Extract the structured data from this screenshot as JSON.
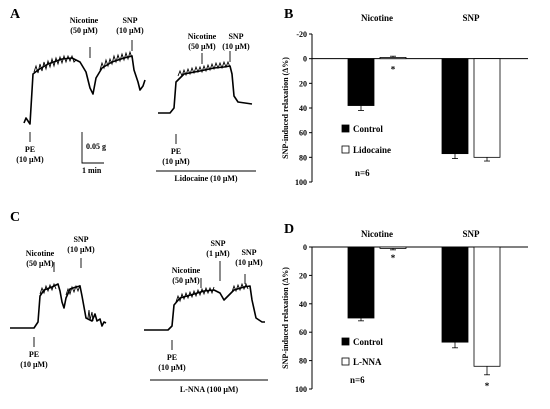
{
  "panel_labels": {
    "a": "A",
    "b": "B",
    "c": "C",
    "d": "D"
  },
  "traces": {
    "a": {
      "nicotine": [
        "Nicotine",
        "(50 μM)"
      ],
      "snp": [
        "SNP",
        "(10 μM)"
      ],
      "pe": [
        "PE",
        "(10 μM)"
      ],
      "nicotine2": [
        "Nicotine",
        "(50 μM)"
      ],
      "snp2": [
        "SNP",
        "(10 μM)"
      ],
      "pe2": [
        "PE",
        "(10 μM)"
      ],
      "scale_force": "0.05 g",
      "scale_time": "1 min",
      "treatment": "Lidocaine (10 μM)"
    },
    "c": {
      "nicotine": [
        "Nicotine",
        "(50 μM)"
      ],
      "snp": [
        "SNP",
        "(10 μM)"
      ],
      "pe": [
        "PE",
        "(10 μM)"
      ],
      "nicotine2": [
        "Nicotine",
        "(50 μM)"
      ],
      "snp_mid": [
        "SNP",
        "(1 μM)"
      ],
      "snp2": [
        "SNP",
        "(10 μM)"
      ],
      "pe2": [
        "PE",
        "(10 μM)"
      ],
      "treatment": "L-NNA (100 μM)"
    }
  },
  "chart_data": [
    {
      "panel": "B",
      "type": "bar",
      "categories": [
        "Nicotine",
        "SNP"
      ],
      "ylabel": "SNP-induced relaxation (Δ%)",
      "ylim": [
        -20,
        100
      ],
      "y_inverted": true,
      "yticks": [
        -20,
        0,
        20,
        40,
        60,
        80,
        100
      ],
      "series": [
        {
          "name": "Control",
          "color": "#000000",
          "values": [
            38,
            77
          ],
          "errors": [
            4,
            4
          ]
        },
        {
          "name": "Lidocaine",
          "color": "#ffffff",
          "values": [
            -1,
            80
          ],
          "errors": [
            1,
            3
          ]
        }
      ],
      "significance": [
        {
          "category": "Nicotine",
          "series": "Lidocaine",
          "mark": "*"
        }
      ],
      "annotation": "n=6"
    },
    {
      "panel": "D",
      "type": "bar",
      "categories": [
        "Nicotine",
        "SNP"
      ],
      "ylabel": "SNP-induced relaxation (Δ%)",
      "ylim": [
        0,
        100
      ],
      "y_inverted": true,
      "yticks": [
        0,
        20,
        40,
        60,
        80,
        100
      ],
      "series": [
        {
          "name": "Control",
          "color": "#000000",
          "values": [
            50,
            67
          ],
          "errors": [
            2,
            4
          ]
        },
        {
          "name": "L-NNA",
          "color": "#ffffff",
          "values": [
            1,
            84
          ],
          "errors": [
            1,
            6
          ]
        }
      ],
      "significance": [
        {
          "category": "Nicotine",
          "series": "L-NNA",
          "mark": "*"
        },
        {
          "category": "SNP",
          "series": "L-NNA",
          "mark": "*"
        }
      ],
      "annotation": "n=6"
    }
  ]
}
